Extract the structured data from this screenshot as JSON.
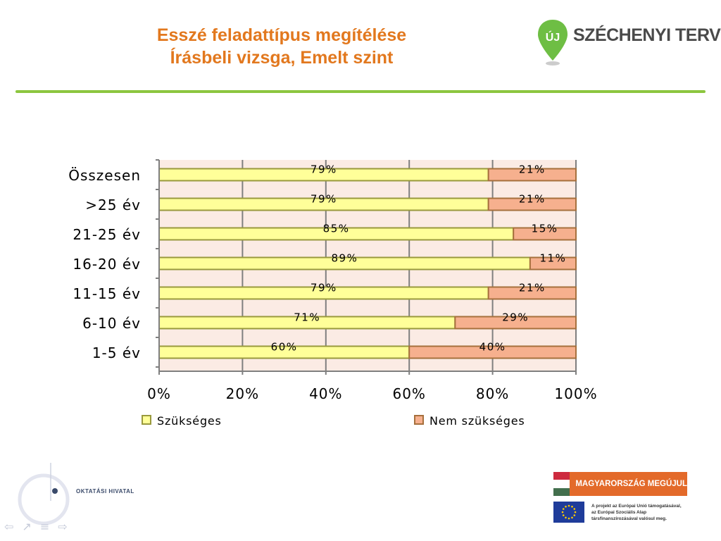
{
  "header": {
    "title_line1": "Esszé feladattípus megítélése",
    "title_line2": "Írásbeli vizsga, Emelt szint",
    "logo_text": "SZÉCHENYI TERV",
    "logo_pin_text": "ÚJ"
  },
  "colors": {
    "title": "#e2781e",
    "divider": "#8cc63f",
    "series1_fill": "#ffff99",
    "series1_border": "#99993d",
    "series2_fill": "#f6b08e",
    "series2_border": "#a6703d",
    "plot_bg": "#fbebe4"
  },
  "chart_data": {
    "type": "bar",
    "orientation": "horizontal",
    "stacked": true,
    "categories": [
      "Összesen",
      ">25 év",
      "21-25 év",
      "16-20 év",
      "11-15 év",
      "6-10 év",
      "1-5 év"
    ],
    "series": [
      {
        "name": "Szükséges",
        "values": [
          79,
          79,
          85,
          89,
          79,
          71,
          60
        ],
        "labels": [
          "79%",
          "79%",
          "85%",
          "89%",
          "79%",
          "71%",
          "60%"
        ]
      },
      {
        "name": "Nem szükséges",
        "values": [
          21,
          21,
          15,
          11,
          21,
          29,
          40
        ],
        "labels": [
          "21%",
          "21%",
          "15%",
          "11%",
          "21%",
          "29%",
          "40%"
        ]
      }
    ],
    "xlim": [
      0,
      100
    ],
    "x_ticks": [
      0,
      20,
      40,
      60,
      80,
      100
    ],
    "x_tick_labels": [
      "0%",
      "20%",
      "40%",
      "60%",
      "80%",
      "100%"
    ],
    "grid": true,
    "legend_position": "bottom"
  },
  "footer": {
    "org_name": "OKTATÁSI HIVATAL",
    "banner_text": "MAGYARORSZÁG MEGÚJUL",
    "eu_text_line1": "A projekt az Európai Unió támogatásával,",
    "eu_text_line2": "az Európai Szociális Alap",
    "eu_text_line3": "társfinanszírozásával valósul meg.",
    "nav_icons": [
      "arrow-left-icon",
      "arrow-right-outline-icon",
      "menu-icon",
      "arrow-right-icon"
    ]
  }
}
